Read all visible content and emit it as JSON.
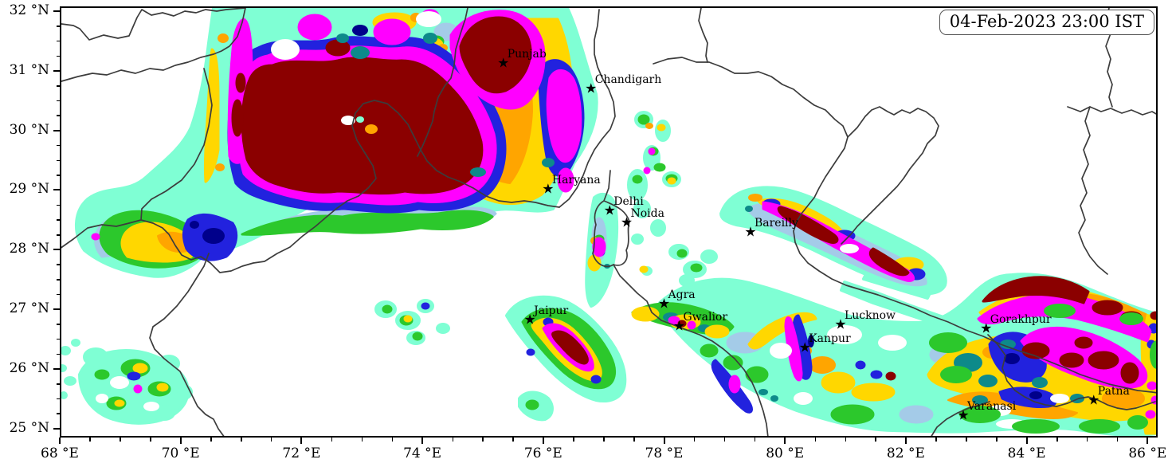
{
  "timestamp_box": {
    "text": "04-Feb-2023 23:00 IST"
  },
  "axes": {
    "x": {
      "ticks": [
        {
          "value": 68,
          "label": "68 °E"
        },
        {
          "value": 70,
          "label": "70 °E"
        },
        {
          "value": 72,
          "label": "72 °E"
        },
        {
          "value": 74,
          "label": "74 °E"
        },
        {
          "value": 76,
          "label": "76 °E"
        },
        {
          "value": 78,
          "label": "78 °E"
        },
        {
          "value": 80,
          "label": "80 °E"
        },
        {
          "value": 82,
          "label": "82 °E"
        },
        {
          "value": 84,
          "label": "84 °E"
        },
        {
          "value": 86,
          "label": "86 °E"
        }
      ],
      "minor_step": 0.5,
      "range": [
        68,
        86.17
      ]
    },
    "y": {
      "ticks": [
        {
          "value": 25,
          "label": "25 °N"
        },
        {
          "value": 26,
          "label": "26 °N"
        },
        {
          "value": 27,
          "label": "27 °N"
        },
        {
          "value": 28,
          "label": "28 °N"
        },
        {
          "value": 29,
          "label": "29 °N"
        },
        {
          "value": 30,
          "label": "30 °N"
        },
        {
          "value": 31,
          "label": "31 °N"
        },
        {
          "value": 32,
          "label": "32 °N"
        }
      ],
      "minor_step": 0.25,
      "range": [
        24.85,
        32.08
      ]
    }
  },
  "cities": [
    {
      "name": "Punjab",
      "lon": 75.34,
      "lat": 31.12
    },
    {
      "name": "Chandigarh",
      "lon": 76.79,
      "lat": 30.69
    },
    {
      "name": "Haryana",
      "lon": 76.08,
      "lat": 29.0
    },
    {
      "name": "Delhi",
      "lon": 77.1,
      "lat": 28.64
    },
    {
      "name": "Noida",
      "lon": 77.38,
      "lat": 28.45
    },
    {
      "name": "Bareilly",
      "lon": 79.43,
      "lat": 28.28
    },
    {
      "name": "Jaipur",
      "lon": 75.78,
      "lat": 26.81
    },
    {
      "name": "Agra",
      "lon": 78.0,
      "lat": 27.08
    },
    {
      "name": "Gwalior",
      "lon": 78.25,
      "lat": 26.7
    },
    {
      "name": "Lucknow",
      "lon": 80.92,
      "lat": 26.73
    },
    {
      "name": "Kanpur",
      "lon": 80.33,
      "lat": 26.35
    },
    {
      "name": "Gorakhpur",
      "lon": 83.33,
      "lat": 26.66
    },
    {
      "name": "Varanasi",
      "lon": 82.95,
      "lat": 25.21
    },
    {
      "name": "Patna",
      "lon": 85.11,
      "lat": 25.46
    }
  ],
  "palette": {
    "aquamarine": "#7FFFD4",
    "light_blue": "#A4CBE8",
    "green": "#2CC82C",
    "teal": "#0D8A8A",
    "gold": "#FFD700",
    "orange": "#FFA500",
    "blue": "#2222DE",
    "navy": "#00008B",
    "magenta": "#FF00FF",
    "dark_red": "#8B0000"
  },
  "map": {
    "boundary_color": "#3C3C3C",
    "frame_color": "#000000",
    "background": "#FFFFFF",
    "marker_color": "#000000",
    "star_glyph": "★"
  }
}
